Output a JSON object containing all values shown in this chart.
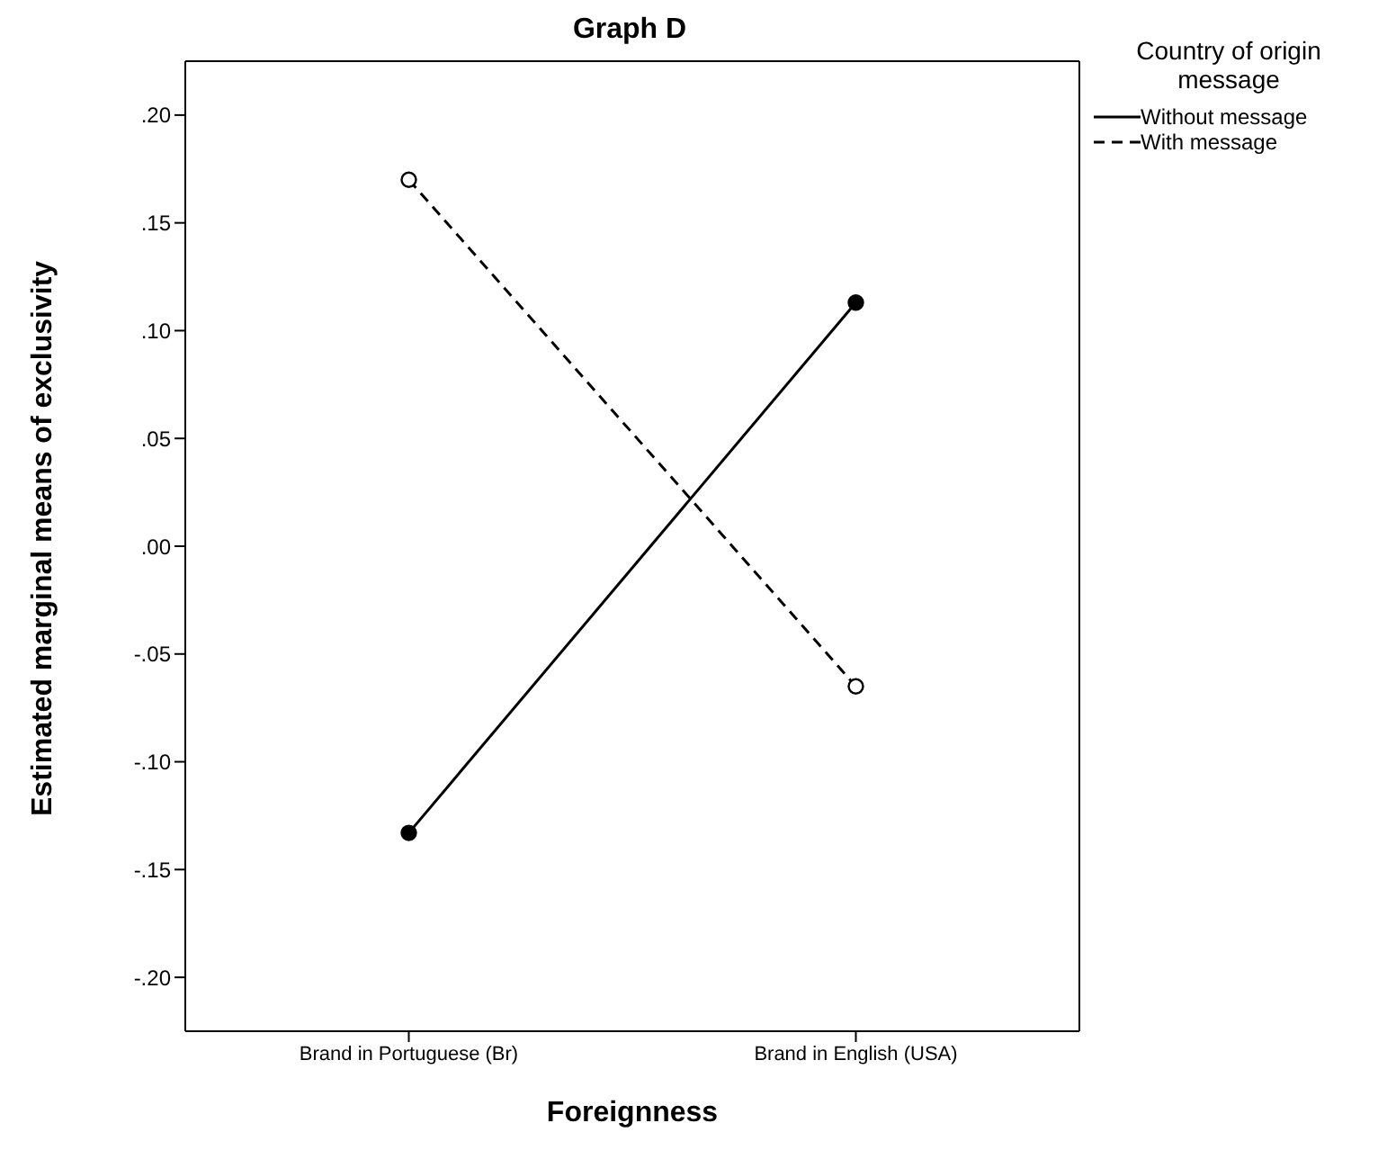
{
  "chart_data": {
    "type": "line",
    "title": "Graph D",
    "xlabel": "Foreignness",
    "ylabel": "Estimated marginal means of exclusivity",
    "legend_title": "Country of origin message",
    "categories": [
      "Brand in Portuguese (Br)",
      "Brand in English (USA)"
    ],
    "series": [
      {
        "name": "Without message",
        "color": "#000000",
        "line_style": "solid",
        "values": [
          -0.133,
          0.113
        ]
      },
      {
        "name": "With message",
        "color": "#000000",
        "line_style": "dashed",
        "values": [
          0.17,
          -0.065
        ]
      }
    ],
    "ylim": [
      -0.225,
      0.225
    ],
    "yticks": [
      {
        "value": -0.2,
        "label": "-.20"
      },
      {
        "value": -0.15,
        "label": "-.15"
      },
      {
        "value": -0.1,
        "label": "-.10"
      },
      {
        "value": -0.05,
        "label": "-.05"
      },
      {
        "value": 0,
        "label": ".00"
      },
      {
        "value": 0.05,
        "label": ".05"
      },
      {
        "value": 0.1,
        "label": ".10"
      },
      {
        "value": 0.15,
        "label": ".15"
      },
      {
        "value": 0.2,
        "label": ".20"
      }
    ],
    "legend": "top right",
    "marker": "circle"
  }
}
